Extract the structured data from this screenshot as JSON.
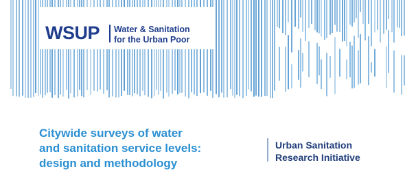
{
  "logo": {
    "acronym": "WSUP",
    "name_lines": [
      "Water & Sanitation",
      "for the Urban Poor"
    ]
  },
  "title_lines": [
    "Citywide surveys of water",
    "and sanitation service levels:",
    "design and methodology"
  ],
  "initiative_lines": [
    "Urban Sanitation",
    "Research Initiative"
  ]
}
